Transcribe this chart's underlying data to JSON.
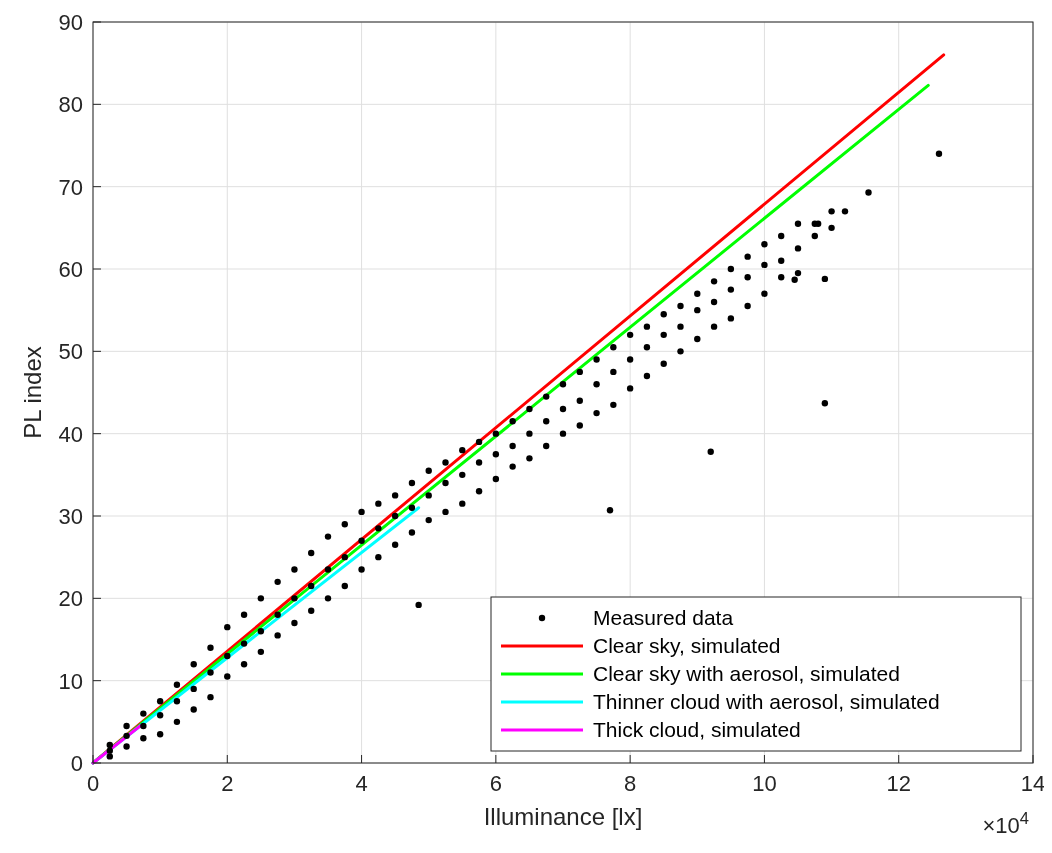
{
  "chart_data": {
    "type": "scatter",
    "xlabel": "Illuminance [lx]",
    "ylabel": "PL index",
    "annotations": [
      "×10$^{4}$"
    ],
    "xlim": [
      0,
      14
    ],
    "xticks": [
      0,
      2,
      4,
      6,
      8,
      10,
      12,
      14
    ],
    "ylim": [
      0,
      90
    ],
    "yticks": [
      0,
      10,
      20,
      30,
      40,
      50,
      60,
      70,
      80,
      90
    ],
    "grid": true,
    "legend": "bottom right",
    "series": [
      {
        "name": "Measured data",
        "marker": "circle",
        "color": "#000000",
        "x": [
          0.25,
          0.25,
          0.25,
          0.5,
          0.5,
          0.5,
          0.75,
          0.75,
          0.75,
          1,
          1,
          1,
          1.25,
          1.25,
          1.25,
          1.5,
          1.5,
          1.5,
          1.75,
          1.75,
          1.75,
          2,
          2,
          2,
          2.25,
          2.25,
          2.25,
          2.5,
          2.5,
          2.5,
          2.75,
          2.75,
          2.75,
          3,
          3,
          3,
          3.25,
          3.25,
          3.25,
          3.5,
          3.5,
          3.5,
          3.75,
          3.75,
          3.75,
          4,
          4,
          4,
          4.25,
          4.25,
          4.25,
          4.5,
          4.5,
          4.5,
          4.75,
          4.75,
          4.75,
          5,
          5,
          5,
          5.25,
          5.25,
          5.25,
          5.5,
          5.5,
          5.5,
          5.75,
          5.75,
          5.75,
          6,
          6,
          6,
          6.25,
          6.25,
          6.25,
          6.5,
          6.5,
          6.5,
          6.75,
          6.75,
          6.75,
          7,
          7,
          7,
          7.25,
          7.25,
          7.25,
          7.5,
          7.5,
          7.5,
          7.75,
          7.75,
          7.75,
          8,
          8,
          8,
          8.25,
          8.25,
          8.25,
          8.5,
          8.5,
          8.5,
          8.75,
          8.75,
          8.75,
          9,
          9,
          9,
          9.25,
          9.25,
          9.25,
          9.5,
          9.5,
          9.5,
          9.75,
          9.75,
          9.75,
          10,
          10,
          10,
          10.25,
          10.25,
          10.25,
          10.5,
          10.5,
          10.5,
          10.75,
          10.75,
          11,
          11,
          12.6,
          11.55,
          10.9,
          9.2,
          7.7,
          4.85,
          10.9,
          10.45,
          11.2,
          10.8
        ],
        "values": [
          2.2,
          1.5,
          0.8,
          4.5,
          3.3,
          2,
          6,
          4.5,
          3,
          7.5,
          5.8,
          3.5,
          9.5,
          7.5,
          5,
          12,
          9,
          6.5,
          14,
          11,
          8,
          16.5,
          13,
          10.5,
          18,
          14.5,
          12,
          20,
          16,
          13.5,
          22,
          18,
          15.5,
          23.5,
          20,
          17,
          25.5,
          21.5,
          18.5,
          27.5,
          23.5,
          20,
          29,
          25,
          21.5,
          30.5,
          27,
          23.5,
          31.5,
          28.5,
          25,
          32.5,
          30,
          26.5,
          34,
          31,
          28,
          35.5,
          32.5,
          29.5,
          36.5,
          34,
          30.5,
          38,
          35,
          31.5,
          39,
          36.5,
          33,
          40,
          37.5,
          34.5,
          41.5,
          38.5,
          36,
          43,
          40,
          37,
          44.5,
          41.5,
          38.5,
          46,
          43,
          40,
          47.5,
          44,
          41,
          49,
          46,
          42.5,
          50.5,
          47.5,
          43.5,
          52,
          49,
          45.5,
          53,
          50.5,
          47,
          54.5,
          52,
          48.5,
          55.5,
          53,
          50,
          57,
          55,
          51.5,
          58.5,
          56,
          53,
          60,
          57.5,
          54,
          61.5,
          59,
          55.5,
          63,
          60.5,
          57,
          64,
          61,
          59,
          65.5,
          62.5,
          59.5,
          65.5,
          64,
          67,
          65,
          74,
          69.3,
          43.7,
          37.8,
          30.7,
          19.2,
          58.8,
          58.7,
          67,
          65.5
        ]
      },
      {
        "name": "Clear sky, simulated",
        "type": "line",
        "marker": "none",
        "color": "#ff0000",
        "x": [
          0,
          12.67
        ],
        "values": [
          0,
          86
        ]
      },
      {
        "name": "Clear sky with aerosol, simulated",
        "type": "line",
        "marker": "none",
        "color": "#00ff00",
        "x": [
          0,
          12.44
        ],
        "values": [
          0,
          82.3
        ]
      },
      {
        "name": "Thinner cloud with aerosol, simulated",
        "type": "line",
        "marker": "none",
        "color": "#00ffff",
        "x": [
          0,
          4.85
        ],
        "values": [
          0,
          31
        ]
      },
      {
        "name": "Thick cloud, simulated",
        "type": "line",
        "marker": "none",
        "color": "#ff00ff",
        "x": [
          0,
          0.7
        ],
        "values": [
          0,
          4.5
        ]
      }
    ]
  }
}
